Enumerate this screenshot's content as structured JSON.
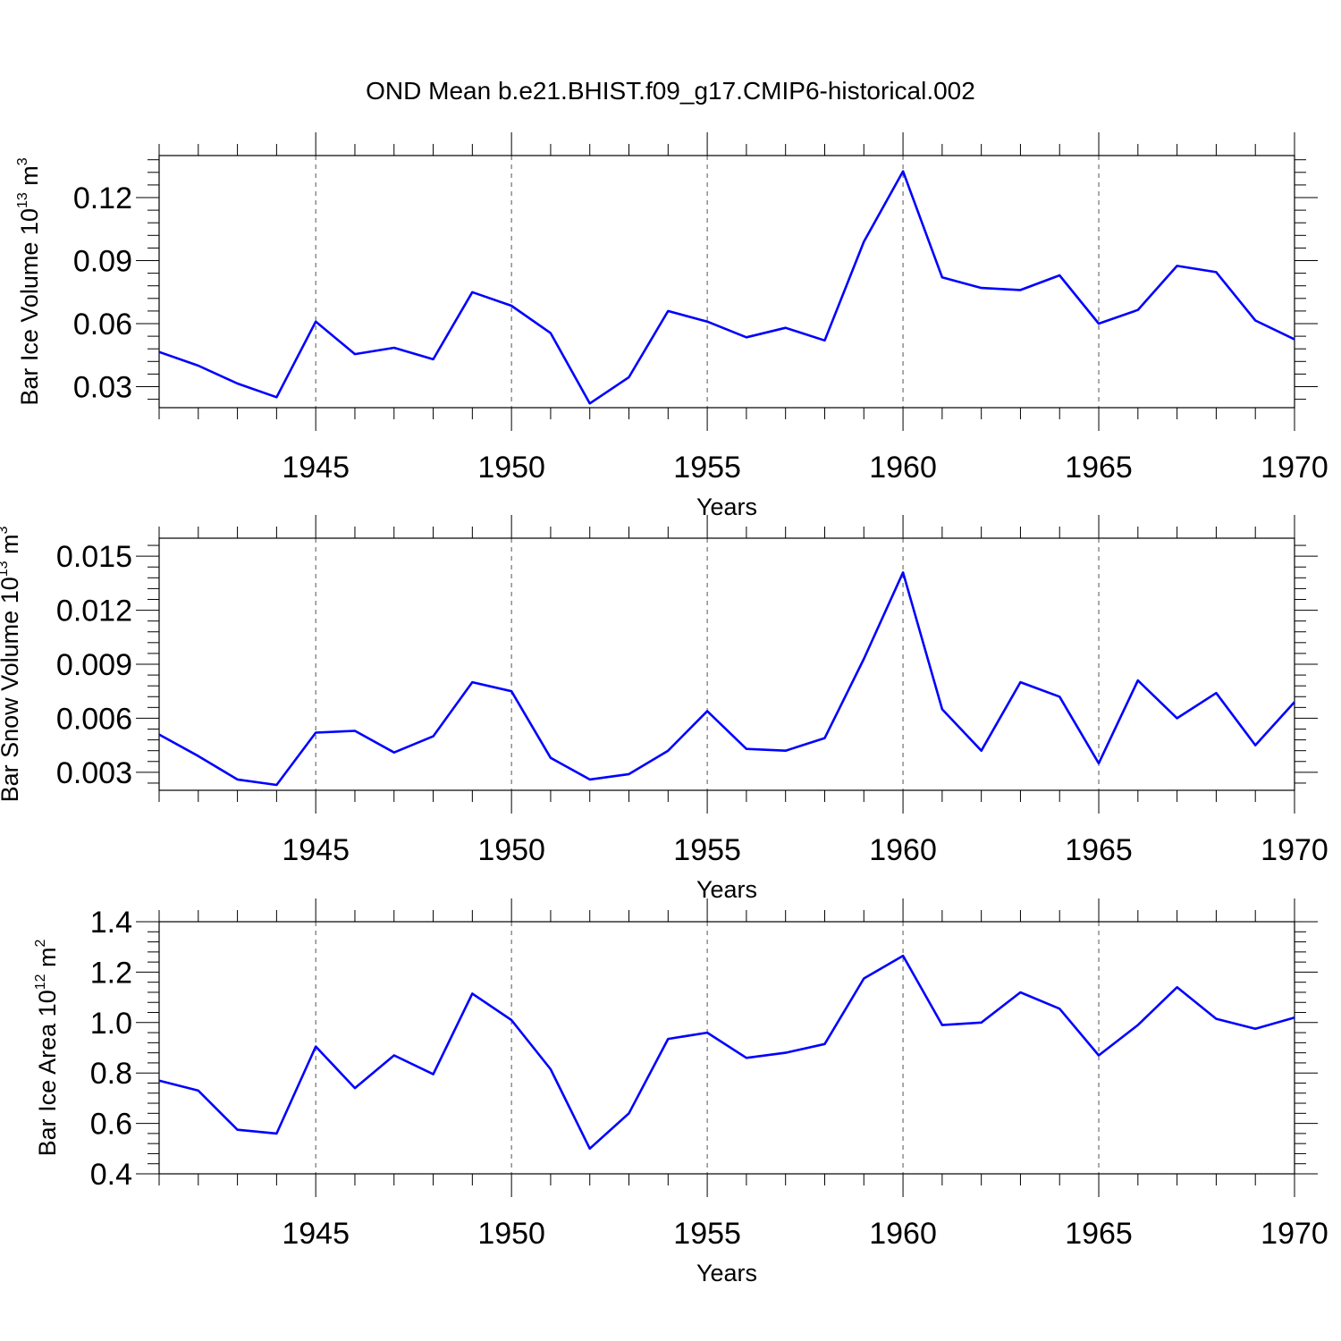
{
  "chart_data": {
    "title": "OND Mean b.e21.BHIST.f09_g17.CMIP6-historical.002",
    "type": "line",
    "line_color": "#0000ff",
    "grid": "vertical dashed lines at major x ticks",
    "x_label": "Years",
    "x_range": [
      1941,
      1970
    ],
    "x_major_ticks": [
      1945,
      1950,
      1955,
      1960,
      1965,
      1970
    ],
    "panels": [
      {
        "name": "ice-volume",
        "ylabel": {
          "base": "Bar Ice Volume 10",
          "exp": "13",
          "unit": " m",
          "unit_exp": "3"
        },
        "ylim": [
          0.02,
          0.14
        ],
        "yticks": [
          0.03,
          0.06,
          0.09,
          0.12
        ],
        "ytick_labels": [
          "0.03",
          "0.06",
          "0.09",
          "0.12"
        ],
        "xlabel": "Years",
        "xtick_labels": [
          "1945",
          "1950",
          "1955",
          "1960",
          "1965",
          "1970"
        ],
        "series": [
          {
            "name": "Bar Ice Volume",
            "x": [
              1941,
              1942,
              1943,
              1944,
              1945,
              1946,
              1947,
              1948,
              1949,
              1950,
              1951,
              1952,
              1953,
              1954,
              1955,
              1956,
              1957,
              1958,
              1959,
              1960,
              1961,
              1962,
              1963,
              1964,
              1965,
              1966,
              1967,
              1968,
              1969,
              1970
            ],
            "values": [
              0.0465,
              0.04,
              0.0315,
              0.025,
              0.061,
              0.0455,
              0.0485,
              0.043,
              0.075,
              0.0685,
              0.0555,
              0.022,
              0.0345,
              0.066,
              0.061,
              0.0535,
              0.058,
              0.052,
              0.099,
              0.1325,
              0.082,
              0.077,
              0.076,
              0.083,
              0.06,
              0.0665,
              0.0875,
              0.0845,
              0.0615,
              0.0525
            ]
          }
        ]
      },
      {
        "name": "snow-volume",
        "ylabel": {
          "base": "Bar Snow Volume 10",
          "exp": "13",
          "unit": " m",
          "unit_exp": "3"
        },
        "ylim": [
          0.002,
          0.016
        ],
        "yticks": [
          0.003,
          0.006,
          0.009,
          0.012,
          0.015
        ],
        "ytick_labels": [
          "0.003",
          "0.006",
          "0.009",
          "0.012",
          "0.015"
        ],
        "xlabel": "Years",
        "xtick_labels": [
          "1945",
          "1950",
          "1955",
          "1960",
          "1965",
          "1970"
        ],
        "series": [
          {
            "name": "Bar Snow Volume",
            "x": [
              1941,
              1942,
              1943,
              1944,
              1945,
              1946,
              1947,
              1948,
              1949,
              1950,
              1951,
              1952,
              1953,
              1954,
              1955,
              1956,
              1957,
              1958,
              1959,
              1960,
              1961,
              1962,
              1963,
              1964,
              1965,
              1966,
              1967,
              1968,
              1969,
              1970
            ],
            "values": [
              0.0051,
              0.0039,
              0.0026,
              0.0023,
              0.0052,
              0.0053,
              0.0041,
              0.005,
              0.008,
              0.0075,
              0.0038,
              0.0026,
              0.0029,
              0.0042,
              0.0064,
              0.0043,
              0.0042,
              0.0049,
              0.0093,
              0.0141,
              0.0065,
              0.0042,
              0.008,
              0.0072,
              0.0035,
              0.0081,
              0.006,
              0.0074,
              0.0045,
              0.0069
            ]
          }
        ]
      },
      {
        "name": "ice-area",
        "ylabel": {
          "base": "Bar Ice Area 10",
          "exp": "12",
          "unit": " m",
          "unit_exp": "2"
        },
        "ylim": [
          0.4,
          1.4
        ],
        "yticks": [
          0.4,
          0.6,
          0.8,
          1.0,
          1.2,
          1.4
        ],
        "ytick_labels": [
          "0.4",
          "0.6",
          "0.8",
          "1.0",
          "1.2",
          "1.4"
        ],
        "xlabel": "Years",
        "xtick_labels": [
          "1945",
          "1950",
          "1955",
          "1960",
          "1965",
          "1970"
        ],
        "series": [
          {
            "name": "Bar Ice Area",
            "x": [
              1941,
              1942,
              1943,
              1944,
              1945,
              1946,
              1947,
              1948,
              1949,
              1950,
              1951,
              1952,
              1953,
              1954,
              1955,
              1956,
              1957,
              1958,
              1959,
              1960,
              1961,
              1962,
              1963,
              1964,
              1965,
              1966,
              1967,
              1968,
              1969,
              1970
            ],
            "values": [
              0.77,
              0.73,
              0.575,
              0.56,
              0.905,
              0.74,
              0.87,
              0.795,
              1.115,
              1.01,
              0.815,
              0.5,
              0.64,
              0.935,
              0.96,
              0.86,
              0.88,
              0.915,
              1.175,
              1.265,
              0.99,
              1.0,
              1.12,
              1.055,
              0.87,
              0.99,
              1.14,
              1.015,
              0.975,
              1.02
            ]
          }
        ]
      }
    ]
  }
}
